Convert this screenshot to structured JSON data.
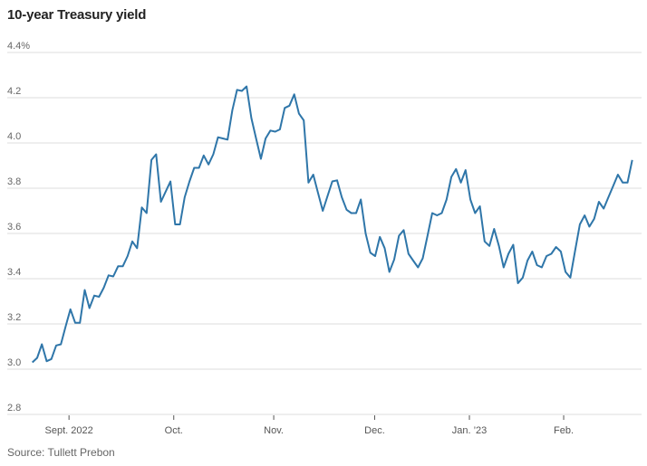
{
  "title": "10-year Treasury yield",
  "source": "Source: Tullett Prebon",
  "colors": {
    "line": "#2f76a9",
    "grid": "#e9e9e9",
    "tick": "#555555"
  },
  "chart_data": {
    "type": "line",
    "title": "10-year Treasury yield",
    "xlabel": "",
    "ylabel": "",
    "x_unit": "trading day index (late Aug. 2022 to late Feb. 2023)",
    "ylim": [
      2.8,
      4.4
    ],
    "grid": true,
    "yticks": [
      {
        "value": 4.4,
        "label": "4.4%"
      },
      {
        "value": 4.2,
        "label": "4.2"
      },
      {
        "value": 4.0,
        "label": "4.0"
      },
      {
        "value": 3.8,
        "label": "3.8"
      },
      {
        "value": 3.6,
        "label": "3.6"
      },
      {
        "value": 3.4,
        "label": "3.4"
      },
      {
        "value": 3.2,
        "label": "3.2"
      },
      {
        "value": 3.0,
        "label": "3.0"
      },
      {
        "value": 2.8,
        "label": "2.8"
      }
    ],
    "xticks": [
      {
        "index": 7.7,
        "label": "Sept. 2022"
      },
      {
        "index": 29.7,
        "label": "Oct."
      },
      {
        "index": 50.7,
        "label": "Nov."
      },
      {
        "index": 71.9,
        "label": "Dec."
      },
      {
        "index": 91.8,
        "label": "Jan. ’23"
      },
      {
        "index": 111.6,
        "label": "Feb."
      }
    ],
    "series": [
      {
        "name": "10-year Treasury yield",
        "values": [
          3.03,
          3.05,
          3.11,
          3.035,
          3.045,
          3.105,
          3.11,
          3.19,
          3.265,
          3.205,
          3.205,
          3.35,
          3.27,
          3.325,
          3.32,
          3.36,
          3.415,
          3.41,
          3.455,
          3.455,
          3.5,
          3.565,
          3.535,
          3.715,
          3.69,
          3.925,
          3.95,
          3.74,
          3.785,
          3.83,
          3.64,
          3.64,
          3.76,
          3.83,
          3.89,
          3.89,
          3.945,
          3.905,
          3.95,
          4.025,
          4.02,
          4.015,
          4.145,
          4.235,
          4.23,
          4.25,
          4.11,
          4.02,
          3.93,
          4.02,
          4.055,
          4.05,
          4.06,
          4.155,
          4.165,
          4.215,
          4.13,
          4.1,
          3.825,
          3.86,
          3.78,
          3.7,
          3.765,
          3.83,
          3.835,
          3.76,
          3.705,
          3.69,
          3.69,
          3.75,
          3.6,
          3.515,
          3.5,
          3.585,
          3.535,
          3.43,
          3.485,
          3.59,
          3.615,
          3.51,
          3.48,
          3.45,
          3.49,
          3.59,
          3.69,
          3.68,
          3.69,
          3.75,
          3.85,
          3.885,
          3.825,
          3.88,
          3.75,
          3.69,
          3.72,
          3.565,
          3.545,
          3.62,
          3.545,
          3.45,
          3.51,
          3.55,
          3.38,
          3.405,
          3.48,
          3.52,
          3.46,
          3.45,
          3.5,
          3.51,
          3.54,
          3.52,
          3.43,
          3.405,
          3.525,
          3.64,
          3.68,
          3.63,
          3.665,
          3.74,
          3.71,
          3.76,
          3.81,
          3.86,
          3.825,
          3.825,
          3.925
        ]
      }
    ]
  }
}
